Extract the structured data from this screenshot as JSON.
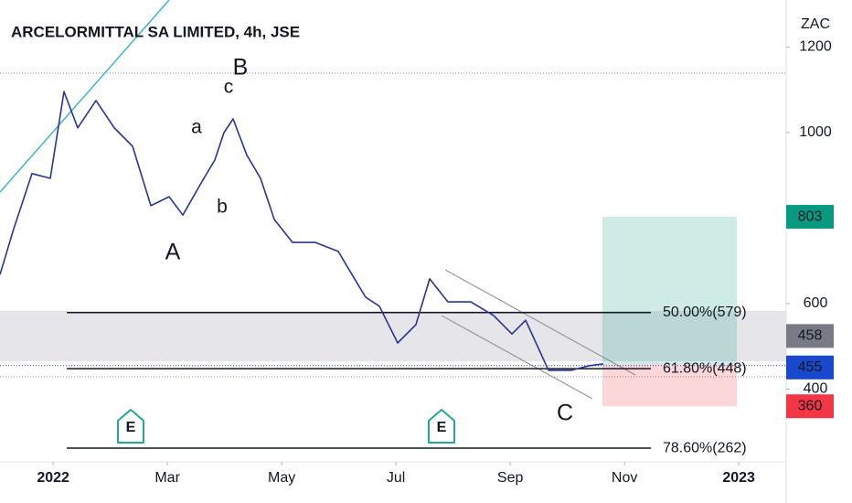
{
  "chart_data": {
    "type": "line",
    "title": "ARCELORMITTAL SA LIMITED, 4h, JSE",
    "y_unit": "ZAC",
    "x": [
      -0.93,
      -0.69,
      -0.37,
      -0.05,
      0.19,
      0.43,
      0.75,
      1.07,
      1.39,
      1.71,
      2.03,
      2.27,
      2.59,
      2.83,
      2.99,
      3.15,
      3.39,
      3.63,
      3.87,
      4.19,
      4.59,
      4.99,
      5.23,
      5.47,
      5.71,
      6.03,
      6.35,
      6.59,
      6.91,
      7.31,
      7.71,
      8.03,
      8.27,
      8.67,
      9.07,
      9.39,
      9.63
    ],
    "values": [
      668,
      775,
      904,
      893,
      1096,
      1011,
      1075,
      1011,
      968,
      829,
      850,
      807,
      882,
      936,
      1000,
      1032,
      947,
      893,
      797,
      743,
      743,
      722,
      668,
      615,
      594,
      508,
      551,
      658,
      604,
      604,
      572,
      529,
      561,
      444,
      444,
      455,
      459
    ],
    "color": "#283593",
    "xlim": [
      -0.93,
      12.83
    ],
    "xticks": [
      {
        "value": 0,
        "label": "2022"
      },
      {
        "value": 2,
        "label": "Mar"
      },
      {
        "value": 4,
        "label": "May"
      },
      {
        "value": 6,
        "label": "Jul"
      },
      {
        "value": 8,
        "label": "Sep"
      },
      {
        "value": 10,
        "label": "Nov"
      },
      {
        "value": 12,
        "label": "2023"
      }
    ],
    "ylim": [
      230,
      1310
    ],
    "yticks": [
      400,
      600,
      1000,
      1200
    ],
    "fib_levels": [
      {
        "label": "50.00%(579)",
        "value": 579
      },
      {
        "label": "61.80%(448)",
        "value": 448
      },
      {
        "label": "78.60%(262)",
        "value": 262
      }
    ],
    "position": {
      "target": 803,
      "entry": 458,
      "stop": 360
    },
    "last_price": 455,
    "annotations": [
      "a",
      "b",
      "c",
      "A",
      "B",
      "C"
    ],
    "events": [
      "E",
      "E"
    ]
  }
}
